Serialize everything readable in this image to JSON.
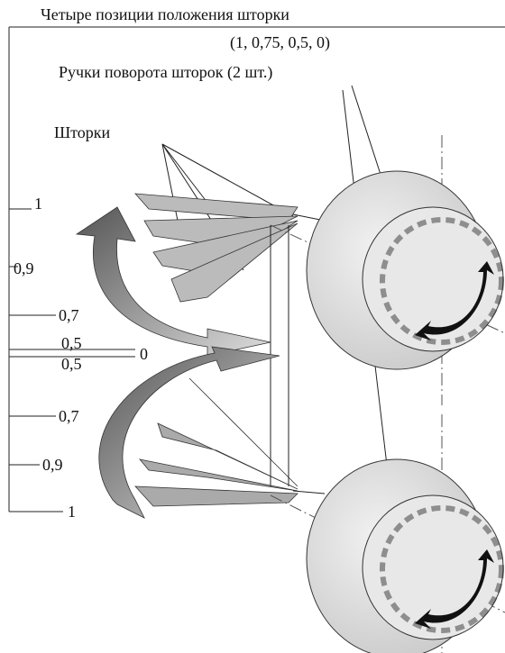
{
  "header": {
    "title": "Четыре позиции положения шторки",
    "positions": "(1, 0,75, 0,5, 0)"
  },
  "callouts": {
    "handles": "Ручки поворота шторок (2 шт.)",
    "shutters": "Шторки"
  },
  "position_labels": [
    "1",
    "0,9",
    "0,7",
    "0,5",
    "0",
    "0,5",
    "0,7",
    "0,9",
    "1"
  ]
}
